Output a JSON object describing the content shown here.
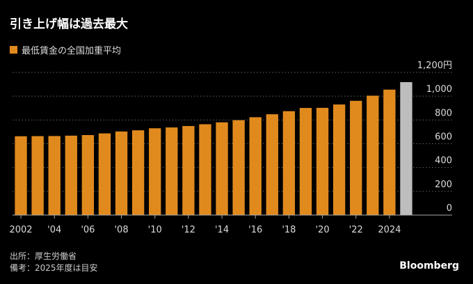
{
  "title": "引き上げ幅は過去最大",
  "footnotes": {
    "source": "出所：厚生労働省",
    "note": "備考：2025年度は目安"
  },
  "brand": "Bloomberg",
  "chart_data": {
    "type": "bar",
    "legend": "最低賃金の全国加重平均",
    "legend_position": "top-left",
    "categories": [
      "2002",
      "2003",
      "2004",
      "2005",
      "2006",
      "2007",
      "2008",
      "2009",
      "2010",
      "2011",
      "2012",
      "2013",
      "2014",
      "2015",
      "2016",
      "2017",
      "2018",
      "2019",
      "2020",
      "2021",
      "2022",
      "2023",
      "2024",
      "2025"
    ],
    "values": [
      663,
      664,
      665,
      668,
      673,
      687,
      703,
      713,
      730,
      737,
      749,
      764,
      780,
      798,
      823,
      848,
      874,
      901,
      902,
      930,
      961,
      1004,
      1055,
      1118
    ],
    "x_tick_labels": [
      "2002",
      "'04",
      "'06",
      "'08",
      "'10",
      "'12",
      "'14",
      "'16",
      "'18",
      "'20",
      "'22",
      "2024"
    ],
    "y_tick_labels": [
      "0",
      "200",
      "400",
      "600",
      "800",
      "1,000",
      "1,200円"
    ],
    "y_ticks": [
      0,
      200,
      400,
      600,
      800,
      1000,
      1200
    ],
    "ylim": [
      0,
      1200
    ],
    "grid": true,
    "y_axis_position": "right",
    "colors": {
      "actual": "#e08a1e",
      "estimate": "#bdbdbd",
      "grid": "#666666"
    }
  }
}
